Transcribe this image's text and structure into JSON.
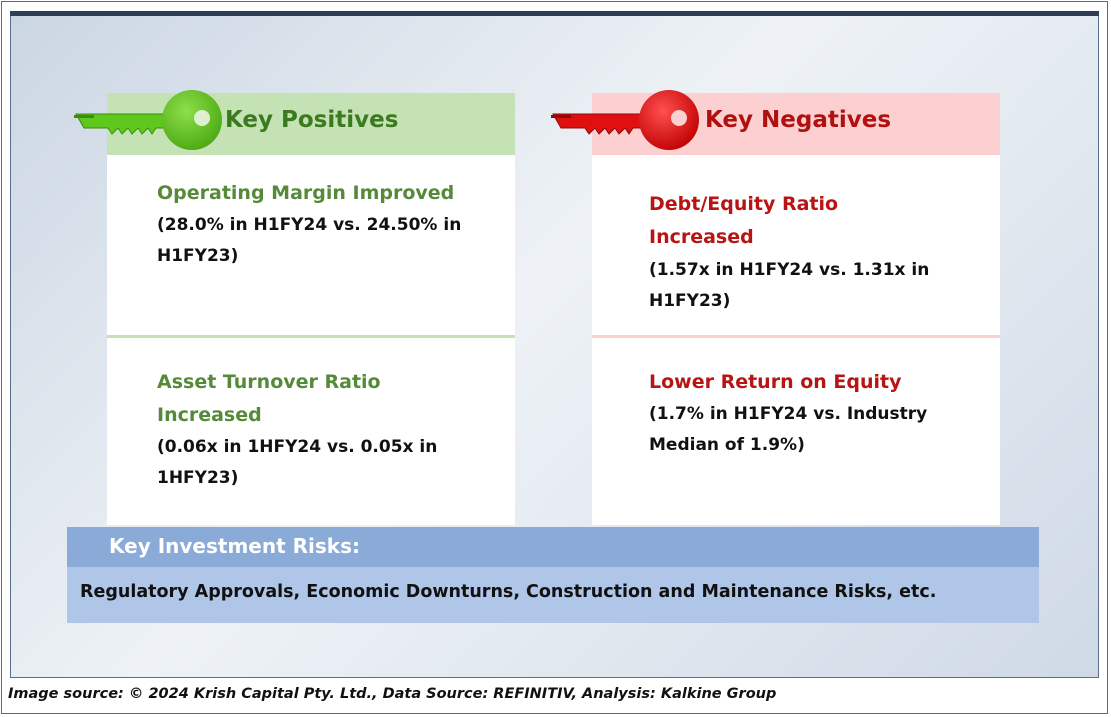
{
  "positives": {
    "title": "Key Positives",
    "items": [
      {
        "title": "Operating Margin Improved",
        "detail_lines": [
          "(28.0% in H1FY24 vs. 24.50% in",
          "H1FY23)"
        ]
      },
      {
        "title_lines": [
          "Asset Turnover Ratio",
          "Increased"
        ],
        "detail_lines": [
          "(0.06x in 1HFY24 vs. 0.05x in",
          "1HFY23)"
        ]
      }
    ]
  },
  "negatives": {
    "title": "Key Negatives",
    "items": [
      {
        "title_lines": [
          "Debt/Equity Ratio",
          "Increased"
        ],
        "detail_lines": [
          "(1.57x in H1FY24 vs. 1.31x in",
          "H1FY23)"
        ]
      },
      {
        "title": "Lower Return on Equity",
        "detail_lines": [
          "(1.7% in H1FY24 vs. Industry",
          "Median of 1.9%)"
        ]
      }
    ]
  },
  "risks": {
    "title": "Key Investment Risks:",
    "text": "Regulatory Approvals, Economic Downturns, Construction and Maintenance Risks, etc."
  },
  "footer": "Image source: © 2024 Krish Capital Pty. Ltd., Data Source: REFINITIV, Analysis: Kalkine Group",
  "colors": {
    "positive_accent": "#3b7a1e",
    "positive_key": "#5fc81c",
    "positive_header_bg": "#c5e2b4",
    "negative_accent": "#b01010",
    "negative_key": "#e01010",
    "negative_header_bg": "#fcd0d0",
    "risk_header_bg": "#8aaad8",
    "risk_body_bg": "#afc6e8"
  },
  "icons": [
    "green-key-icon",
    "red-key-icon"
  ]
}
